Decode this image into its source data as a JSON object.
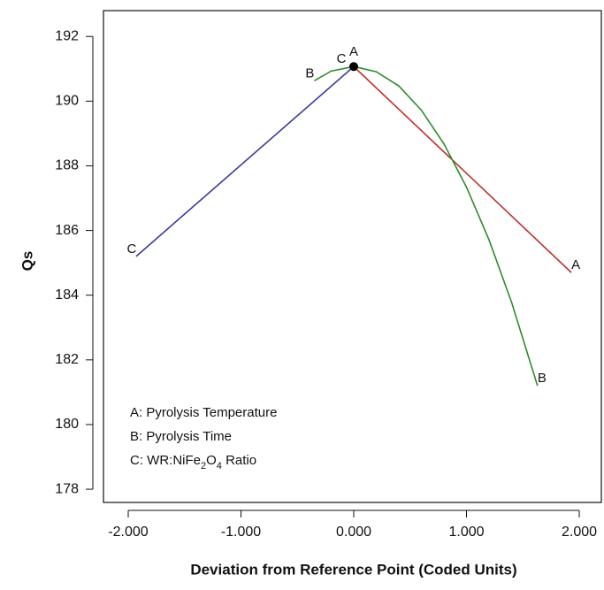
{
  "chart_data": {
    "type": "line",
    "xlabel": "Deviation from Reference Point (Coded Units)",
    "ylabel": "Qs",
    "xlim": [
      -2.2,
      2.2
    ],
    "ylim": [
      177.4,
      192.8
    ],
    "xticks": [
      {
        "value": -2,
        "label": "-2.000"
      },
      {
        "value": -1,
        "label": "-1.000"
      },
      {
        "value": 0,
        "label": "0.000"
      },
      {
        "value": 1,
        "label": "1.000"
      },
      {
        "value": 2,
        "label": "2.000"
      }
    ],
    "yticks": [
      178,
      180,
      182,
      184,
      186,
      188,
      190,
      192
    ],
    "series": [
      {
        "name": "A",
        "color": "#c0302a",
        "x": [
          0,
          1.93
        ],
        "values": [
          191.07,
          184.7
        ]
      },
      {
        "name": "B",
        "color": "#2e8b2e",
        "x": [
          -0.35,
          -0.2,
          0,
          0.2,
          0.4,
          0.6,
          0.8,
          1.0,
          1.2,
          1.4,
          1.63
        ],
        "values": [
          190.63,
          190.93,
          191.07,
          190.91,
          190.47,
          189.72,
          188.68,
          187.34,
          185.71,
          183.78,
          181.2
        ]
      },
      {
        "name": "C",
        "color": "#3a3a9e",
        "x": [
          -1.93,
          0
        ],
        "values": [
          185.2,
          191.07
        ]
      }
    ],
    "reference_point": {
      "x": 0,
      "y": 191.07
    },
    "legend_lines": [
      [
        {
          "text": "A: Pyrolysis Temperature"
        }
      ],
      [
        {
          "text": "B: Pyrolysis Time"
        }
      ],
      [
        {
          "text": "C: WR:NiFe"
        },
        {
          "text": "2",
          "sub": true
        },
        {
          "text": "O"
        },
        {
          "text": "4",
          "sub": true
        },
        {
          "text": " Ratio"
        }
      ]
    ]
  }
}
